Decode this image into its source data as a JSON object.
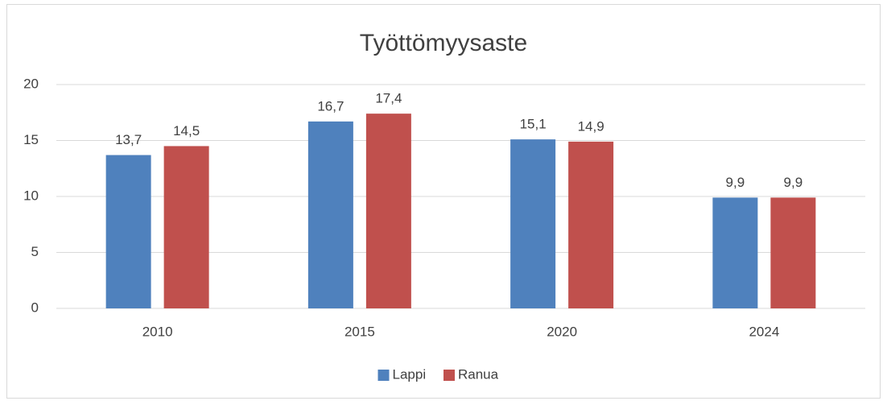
{
  "chart_data": {
    "type": "bar",
    "title": "Työttömyysaste",
    "categories": [
      "2010",
      "2015",
      "2020",
      "2024"
    ],
    "series": [
      {
        "name": "Lappi",
        "color": "#4f81bd",
        "values": [
          13.7,
          16.7,
          15.1,
          9.9
        ],
        "value_labels": [
          "13,7",
          "16,7",
          "15,1",
          "9,9"
        ]
      },
      {
        "name": "Ranua",
        "color": "#c0504d",
        "values": [
          14.5,
          17.4,
          14.9,
          9.9
        ],
        "value_labels": [
          "14,5",
          "17,4",
          "14,9",
          "9,9"
        ]
      }
    ],
    "ylim": [
      0,
      20
    ],
    "yticks": [
      0,
      5,
      10,
      15,
      20
    ],
    "grid": true,
    "legend": "bottom"
  }
}
